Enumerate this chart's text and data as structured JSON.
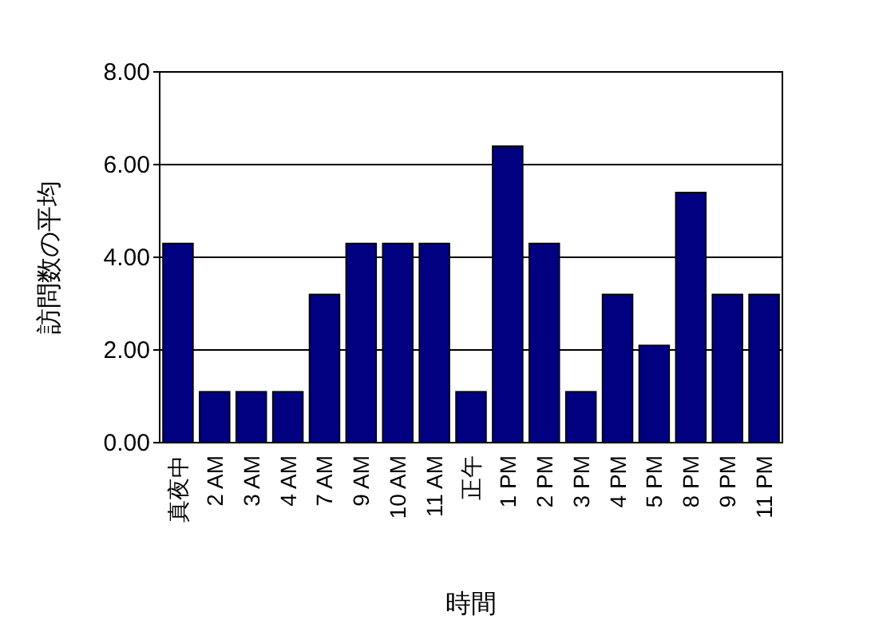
{
  "chart_data": {
    "type": "bar",
    "xlabel": "時間",
    "ylabel": "訪問数の平均",
    "categories": [
      "真夜中",
      "2 AM",
      "3 AM",
      "4 AM",
      "7 AM",
      "9 AM",
      "10 AM",
      "11 AM",
      "正午",
      "1 PM",
      "2 PM",
      "3 PM",
      "4 PM",
      "5 PM",
      "8 PM",
      "9 PM",
      "11 PM"
    ],
    "values": [
      4.3,
      1.1,
      1.1,
      1.1,
      3.2,
      4.3,
      4.3,
      4.3,
      1.1,
      6.4,
      4.3,
      1.1,
      3.2,
      2.1,
      5.4,
      3.2,
      3.2
    ],
    "color": "#000080",
    "ylim": [
      0,
      8
    ],
    "yticks": [
      {
        "value": 0,
        "label": "0.00"
      },
      {
        "value": 2,
        "label": "2.00"
      },
      {
        "value": 4,
        "label": "4.00"
      },
      {
        "value": 6,
        "label": "6.00"
      },
      {
        "value": 8,
        "label": "8.00"
      }
    ],
    "grid": "y"
  }
}
